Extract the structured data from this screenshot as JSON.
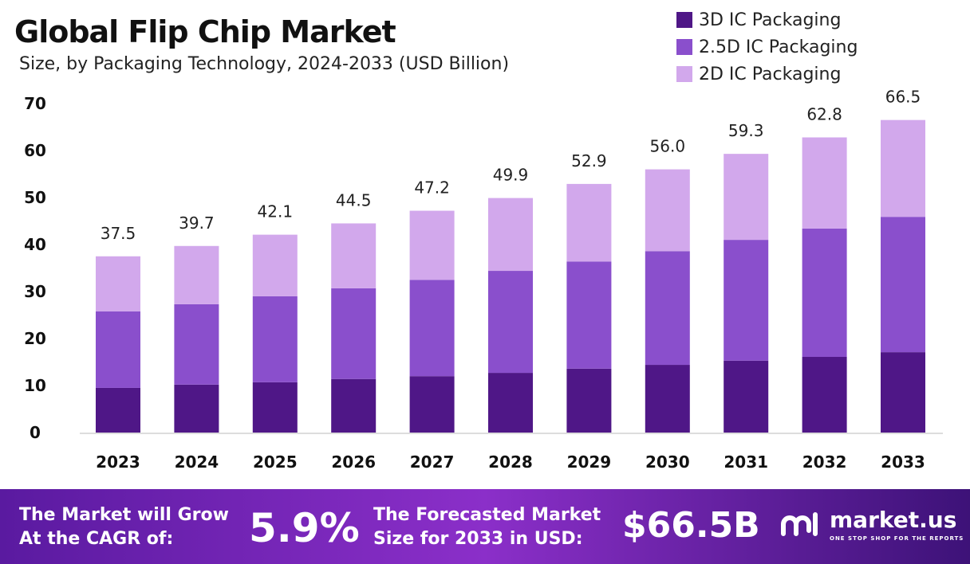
{
  "chart_data": {
    "type": "bar",
    "stacked": true,
    "title": "Global Flip Chip Market",
    "subtitle": "Size, by Packaging Technology, 2024-2033 (USD Billion)",
    "categories": [
      "2023",
      "2024",
      "2025",
      "2026",
      "2027",
      "2028",
      "2029",
      "2030",
      "2031",
      "2032",
      "2033"
    ],
    "series": [
      {
        "name": "3D IC Packaging",
        "color": "#4f1787",
        "values": [
          9.5,
          10.2,
          10.7,
          11.4,
          12.0,
          12.7,
          13.6,
          14.4,
          15.3,
          16.1,
          17.1
        ]
      },
      {
        "name": "2.5D IC Packaging",
        "color": "#8a4fcc",
        "values": [
          16.3,
          17.1,
          18.3,
          19.3,
          20.5,
          21.7,
          22.8,
          24.2,
          25.7,
          27.3,
          28.8
        ]
      },
      {
        "name": "2D IC Packaging",
        "color": "#d2a8ec",
        "values": [
          11.7,
          12.4,
          13.1,
          13.8,
          14.7,
          15.5,
          16.5,
          17.4,
          18.3,
          19.4,
          20.6
        ]
      }
    ],
    "totals": [
      "37.5",
      "39.7",
      "42.1",
      "44.5",
      "47.2",
      "49.9",
      "52.9",
      "56.0",
      "59.3",
      "62.8",
      "66.5"
    ],
    "yticks": [
      "0",
      "10",
      "20",
      "30",
      "40",
      "50",
      "60",
      "70"
    ],
    "ylim": [
      0,
      70
    ],
    "grid": false,
    "legend": "top-right"
  },
  "footer": {
    "cagr_label_1": "The Market will Grow",
    "cagr_label_2": "At the CAGR of:",
    "cagr_value": "5.9%",
    "size_label_1": "The Forecasted Market",
    "size_label_2": "Size for 2033 in USD:",
    "size_value": "$66.5B",
    "brand": "market.us",
    "tagline": "ONE STOP SHOP FOR THE REPORTS"
  }
}
